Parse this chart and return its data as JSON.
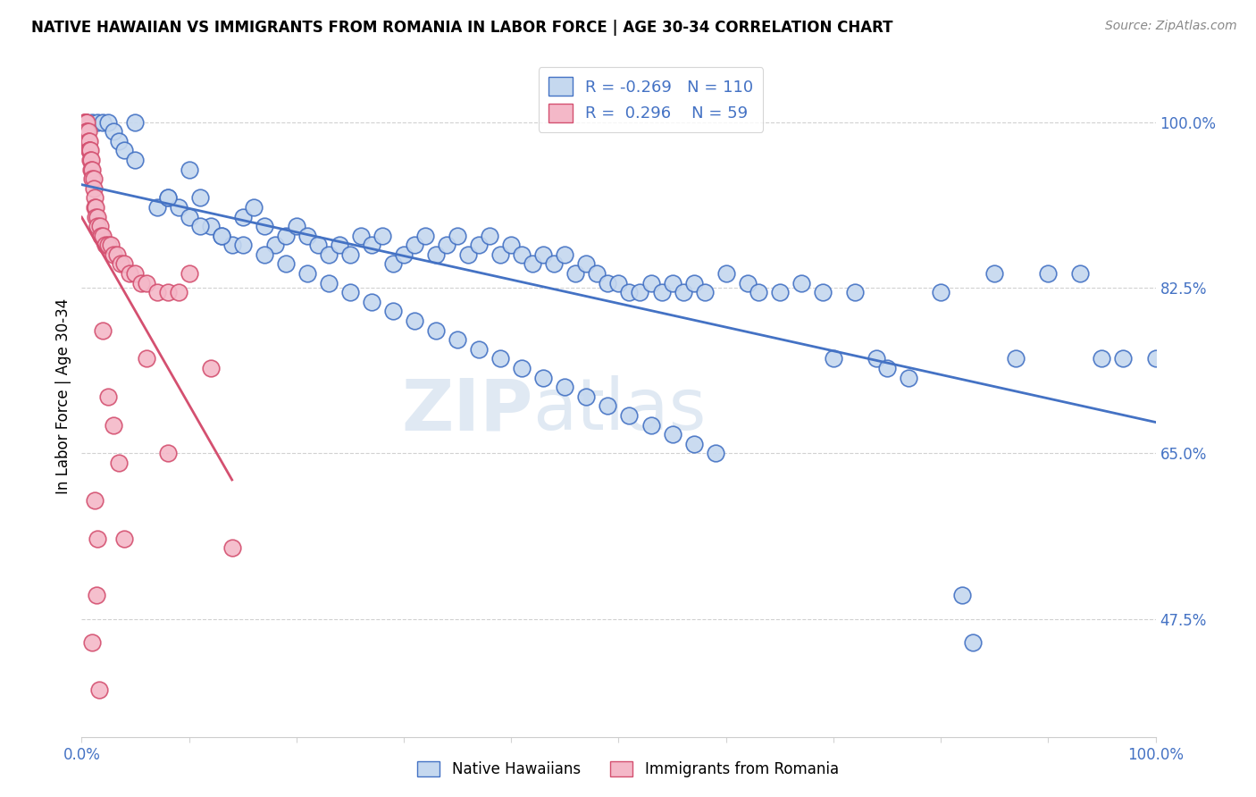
{
  "title": "NATIVE HAWAIIAN VS IMMIGRANTS FROM ROMANIA IN LABOR FORCE | AGE 30-34 CORRELATION CHART",
  "source": "Source: ZipAtlas.com",
  "ylabel": "In Labor Force | Age 30-34",
  "xlim": [
    0.0,
    1.0
  ],
  "ylim": [
    0.35,
    1.07
  ],
  "yticks": [
    0.475,
    0.65,
    0.825,
    1.0
  ],
  "ytick_labels": [
    "47.5%",
    "65.0%",
    "82.5%",
    "100.0%"
  ],
  "blue_face_color": "#c5d8ef",
  "blue_edge_color": "#4472c4",
  "pink_face_color": "#f4b8c8",
  "pink_edge_color": "#d45070",
  "R_blue": -0.269,
  "N_blue": 110,
  "R_pink": 0.296,
  "N_pink": 59,
  "watermark_part1": "ZIP",
  "watermark_part2": "atlas",
  "blue_line_color": "#4472c4",
  "pink_line_color": "#d45070",
  "blue_x": [
    0.005,
    0.01,
    0.015,
    0.02,
    0.025,
    0.03,
    0.035,
    0.04,
    0.05,
    0.05,
    0.07,
    0.08,
    0.09,
    0.1,
    0.1,
    0.11,
    0.12,
    0.13,
    0.14,
    0.15,
    0.16,
    0.17,
    0.18,
    0.19,
    0.2,
    0.21,
    0.22,
    0.23,
    0.24,
    0.25,
    0.26,
    0.27,
    0.28,
    0.29,
    0.3,
    0.31,
    0.32,
    0.33,
    0.34,
    0.35,
    0.36,
    0.37,
    0.38,
    0.39,
    0.4,
    0.41,
    0.42,
    0.43,
    0.44,
    0.45,
    0.46,
    0.47,
    0.48,
    0.49,
    0.5,
    0.51,
    0.52,
    0.53,
    0.54,
    0.55,
    0.56,
    0.57,
    0.58,
    0.6,
    0.62,
    0.63,
    0.65,
    0.67,
    0.69,
    0.7,
    0.72,
    0.74,
    0.75,
    0.77,
    0.8,
    0.82,
    0.83,
    0.85,
    0.87,
    0.9,
    0.93,
    0.95,
    0.97,
    1.0,
    0.08,
    0.11,
    0.13,
    0.15,
    0.17,
    0.19,
    0.21,
    0.23,
    0.25,
    0.27,
    0.29,
    0.31,
    0.33,
    0.35,
    0.37,
    0.39,
    0.41,
    0.43,
    0.45,
    0.47,
    0.49,
    0.51,
    0.53,
    0.55,
    0.57,
    0.59
  ],
  "blue_y": [
    1.0,
    1.0,
    1.0,
    1.0,
    1.0,
    0.99,
    0.98,
    0.97,
    1.0,
    0.96,
    0.91,
    0.92,
    0.91,
    0.95,
    0.9,
    0.92,
    0.89,
    0.88,
    0.87,
    0.9,
    0.91,
    0.89,
    0.87,
    0.88,
    0.89,
    0.88,
    0.87,
    0.86,
    0.87,
    0.86,
    0.88,
    0.87,
    0.88,
    0.85,
    0.86,
    0.87,
    0.88,
    0.86,
    0.87,
    0.88,
    0.86,
    0.87,
    0.88,
    0.86,
    0.87,
    0.86,
    0.85,
    0.86,
    0.85,
    0.86,
    0.84,
    0.85,
    0.84,
    0.83,
    0.83,
    0.82,
    0.82,
    0.83,
    0.82,
    0.83,
    0.82,
    0.83,
    0.82,
    0.84,
    0.83,
    0.82,
    0.82,
    0.83,
    0.82,
    0.75,
    0.82,
    0.75,
    0.74,
    0.73,
    0.82,
    0.5,
    0.45,
    0.84,
    0.75,
    0.84,
    0.84,
    0.75,
    0.75,
    0.75,
    0.92,
    0.89,
    0.88,
    0.87,
    0.86,
    0.85,
    0.84,
    0.83,
    0.82,
    0.81,
    0.8,
    0.79,
    0.78,
    0.77,
    0.76,
    0.75,
    0.74,
    0.73,
    0.72,
    0.71,
    0.7,
    0.69,
    0.68,
    0.67,
    0.66,
    0.65
  ],
  "pink_x": [
    0.002,
    0.003,
    0.003,
    0.004,
    0.004,
    0.005,
    0.005,
    0.005,
    0.006,
    0.006,
    0.007,
    0.007,
    0.007,
    0.008,
    0.008,
    0.009,
    0.009,
    0.01,
    0.01,
    0.011,
    0.011,
    0.012,
    0.012,
    0.013,
    0.013,
    0.015,
    0.015,
    0.017,
    0.018,
    0.02,
    0.022,
    0.025,
    0.027,
    0.03,
    0.033,
    0.036,
    0.04,
    0.045,
    0.05,
    0.055,
    0.06,
    0.07,
    0.08,
    0.09,
    0.1,
    0.12,
    0.14,
    0.06,
    0.08,
    0.04,
    0.02,
    0.025,
    0.03,
    0.035,
    0.015,
    0.01,
    0.012,
    0.014,
    0.016
  ],
  "pink_y": [
    1.0,
    1.0,
    1.0,
    1.0,
    1.0,
    1.0,
    0.99,
    0.99,
    0.99,
    0.98,
    0.98,
    0.97,
    0.97,
    0.97,
    0.96,
    0.96,
    0.95,
    0.95,
    0.94,
    0.94,
    0.93,
    0.92,
    0.91,
    0.91,
    0.9,
    0.9,
    0.89,
    0.89,
    0.88,
    0.88,
    0.87,
    0.87,
    0.87,
    0.86,
    0.86,
    0.85,
    0.85,
    0.84,
    0.84,
    0.83,
    0.83,
    0.82,
    0.82,
    0.82,
    0.84,
    0.74,
    0.55,
    0.75,
    0.65,
    0.56,
    0.78,
    0.71,
    0.68,
    0.64,
    0.56,
    0.45,
    0.6,
    0.5,
    0.4
  ]
}
